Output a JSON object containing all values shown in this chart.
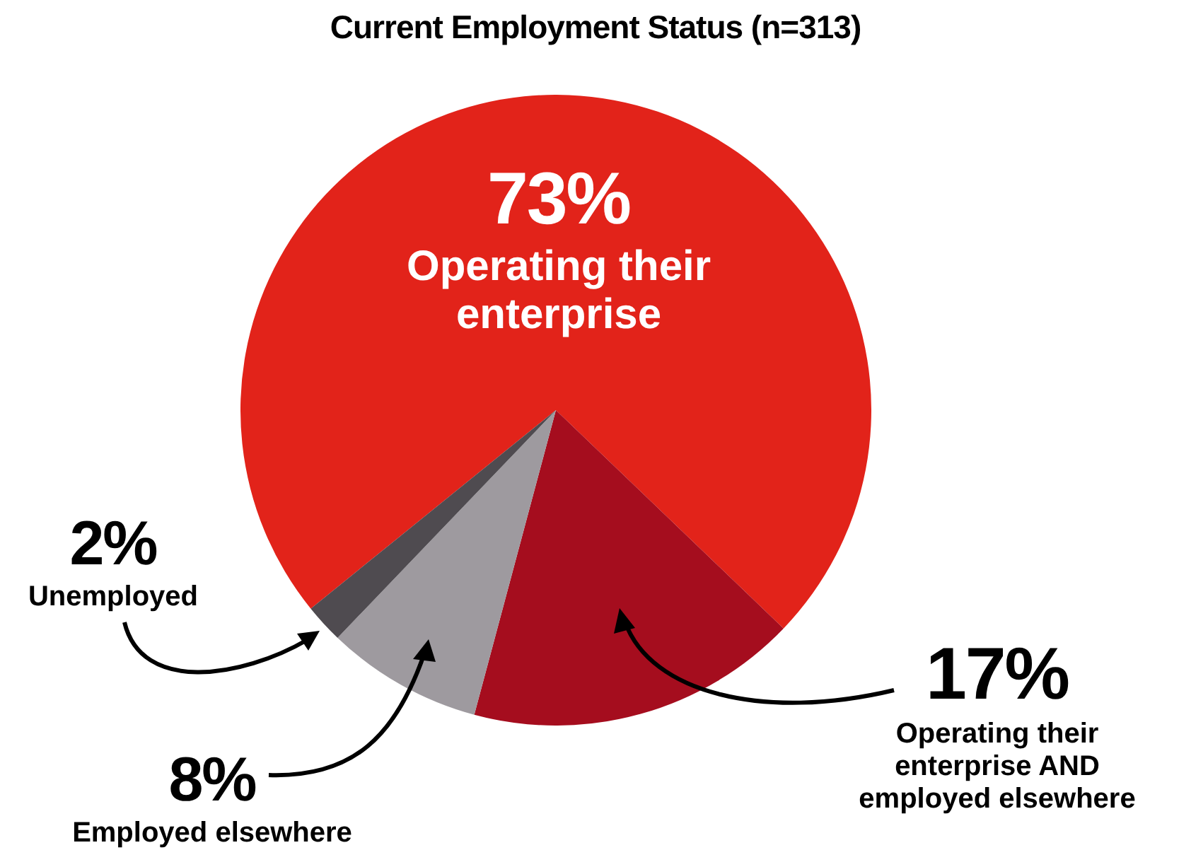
{
  "chart_data": {
    "type": "pie",
    "title": "Current Employment Status (n=313)",
    "categories": [
      "Operating their enterprise",
      "Operating their enterprise AND employed elsewhere",
      "Employed elsewhere",
      "Unemployed"
    ],
    "values": [
      73,
      17,
      8,
      2
    ],
    "colors": [
      "#e2231a",
      "#a50d1e",
      "#9e9a9f",
      "#4f4b50"
    ],
    "value_labels": [
      "73%",
      "17%",
      "8%",
      "2%"
    ],
    "legend": false
  }
}
